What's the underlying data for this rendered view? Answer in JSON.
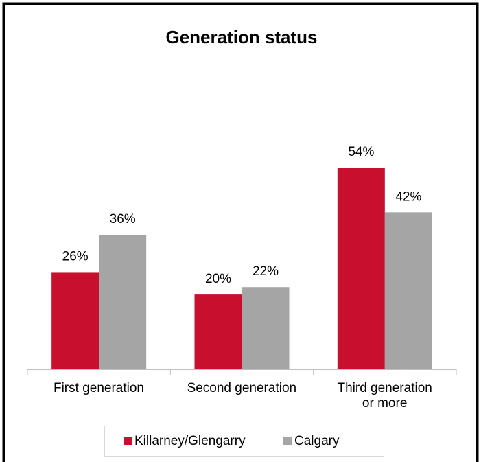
{
  "chart_data": {
    "type": "bar",
    "title": "Generation status",
    "categories": [
      "First generation",
      "Second generation",
      "Third generation\nor more"
    ],
    "series": [
      {
        "name": "Killarney/Glengarry",
        "color": "#c8102e",
        "values": [
          26,
          20,
          54
        ],
        "value_labels": [
          "26%",
          "20%",
          "54%"
        ]
      },
      {
        "name": "Calgary",
        "color": "#a5a5a5",
        "values": [
          36,
          22,
          42
        ],
        "value_labels": [
          "36%",
          "22%",
          "42%"
        ]
      }
    ],
    "legend": "bottom"
  }
}
